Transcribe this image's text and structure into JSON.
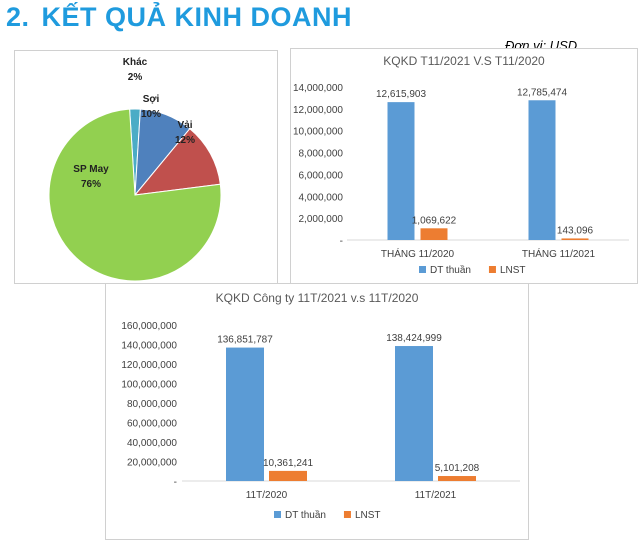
{
  "page": {
    "heading_number": "2.",
    "heading_text": "KẾT QUẢ KINH DOANH",
    "unit_label": "Đơn vị: USD"
  },
  "chart_data": [
    {
      "type": "pie",
      "title": "",
      "slices": [
        {
          "label": "Khác",
          "value": 2,
          "display": "2%",
          "color": "#4bacc6"
        },
        {
          "label": "Sợi",
          "value": 10,
          "display": "10%",
          "color": "#4f81bd"
        },
        {
          "label": "Vải",
          "value": 12,
          "display": "12%",
          "color": "#c0504d"
        },
        {
          "label": "SP May",
          "value": 76,
          "display": "76%",
          "color": "#92d050"
        }
      ]
    },
    {
      "type": "bar",
      "title": "KQKD T11/2021 V.S T11/2020",
      "categories": [
        "THÁNG 11/2020",
        "THÁNG 11/2021"
      ],
      "series": [
        {
          "name": "DT thuần",
          "values": [
            12615903,
            12785474
          ],
          "labels": [
            "12,615,903",
            "12,785,474"
          ],
          "color": "#5b9bd5"
        },
        {
          "name": "LNST",
          "values": [
            1069622,
            143096
          ],
          "labels": [
            "1,069,622",
            "143,096"
          ],
          "color": "#ed7d31"
        }
      ],
      "ylim": [
        0,
        14000000
      ],
      "yticks": [
        0,
        2000000,
        4000000,
        6000000,
        8000000,
        10000000,
        12000000,
        14000000
      ],
      "ytick_labels": [
        "-",
        "2,000,000",
        "4,000,000",
        "6,000,000",
        "8,000,000",
        "10,000,000",
        "12,000,000",
        "14,000,000"
      ],
      "legend": "bottom",
      "grid": false
    },
    {
      "type": "bar",
      "title": "KQKD Công ty 11T/2021 v.s 11T/2020",
      "categories": [
        "11T/2020",
        "11T/2021"
      ],
      "series": [
        {
          "name": "DT thuần",
          "values": [
            136851787,
            138424999
          ],
          "labels": [
            "136,851,787",
            "138,424,999"
          ],
          "color": "#5b9bd5"
        },
        {
          "name": "LNST",
          "values": [
            10361241,
            5101208
          ],
          "labels": [
            "10,361,241",
            "5,101,208"
          ],
          "color": "#ed7d31"
        }
      ],
      "ylim": [
        0,
        160000000
      ],
      "yticks": [
        0,
        20000000,
        40000000,
        60000000,
        80000000,
        100000000,
        120000000,
        140000000,
        160000000
      ],
      "ytick_labels": [
        "-",
        "20,000,000",
        "40,000,000",
        "60,000,000",
        "80,000,000",
        "100,000,000",
        "120,000,000",
        "140,000,000",
        "160,000,000"
      ],
      "legend": "bottom",
      "grid": false
    }
  ]
}
